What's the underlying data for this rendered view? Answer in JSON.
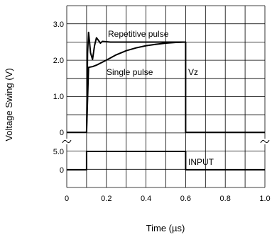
{
  "chart_data": {
    "type": "line",
    "xlabel": "Time (µs)",
    "ylabel": "Voltage Swing (V)",
    "xlim": [
      0,
      1.0
    ],
    "x_ticks": [
      "0",
      "0.2",
      "0.4",
      "0.6",
      "0.8",
      "1.0"
    ],
    "y_ticks_upper": [
      "0",
      "1.0",
      "2.0",
      "3.0"
    ],
    "y_ticks_lower": [
      "0",
      "5.0"
    ],
    "grid": true,
    "annotations": {
      "repetitive": "Repetitive pulse",
      "single": "Single pulse",
      "vz": "Vz",
      "input": "INPUT"
    },
    "series": [
      {
        "name": "Repetitive pulse",
        "panel": "upper",
        "x": [
          0,
          0.09,
          0.1,
          0.105,
          0.11,
          0.115,
          0.12,
          0.13,
          0.14,
          0.15,
          0.16,
          0.17,
          0.18,
          0.2,
          0.22,
          0.25,
          0.3,
          0.6,
          0.6,
          1.0
        ],
        "y": [
          0,
          0,
          0,
          2.2,
          2.77,
          2.5,
          2.2,
          2.02,
          2.4,
          2.62,
          2.55,
          2.47,
          2.52,
          2.51,
          2.5,
          2.5,
          2.5,
          2.5,
          0,
          0
        ]
      },
      {
        "name": "Single pulse",
        "panel": "upper",
        "x": [
          0.1,
          0.11,
          0.13,
          0.15,
          0.2,
          0.25,
          0.3,
          0.35,
          0.4,
          0.45,
          0.5,
          0.55,
          0.6
        ],
        "y": [
          0,
          1.8,
          1.82,
          1.86,
          2.0,
          2.15,
          2.26,
          2.34,
          2.4,
          2.44,
          2.47,
          2.49,
          2.5
        ]
      },
      {
        "name": "INPUT",
        "panel": "lower",
        "x": [
          0,
          0.1,
          0.1,
          0.6,
          0.6,
          1.0
        ],
        "y": [
          0,
          0,
          5.0,
          5.0,
          0,
          0
        ]
      }
    ]
  }
}
